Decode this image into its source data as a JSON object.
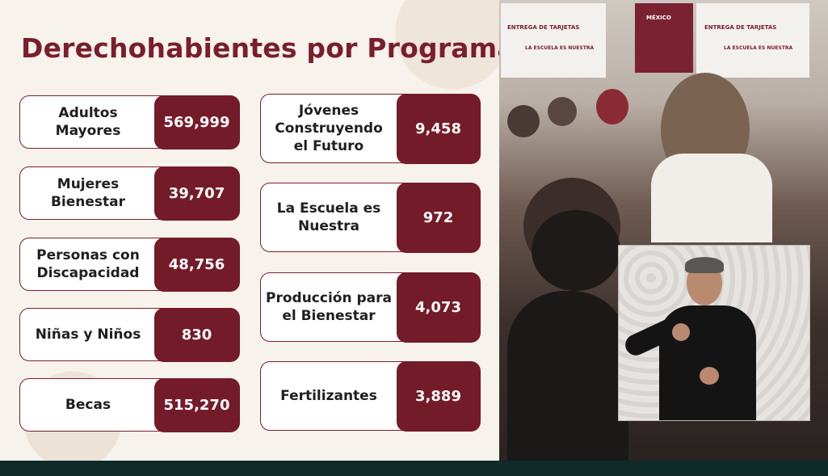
{
  "slide": {
    "title": "Derechohabientes por Programa",
    "programs_left": [
      {
        "label": "Adultos Mayores",
        "value": "569,999"
      },
      {
        "label": "Mujeres Bienestar",
        "value": "39,707"
      },
      {
        "label": "Personas con Discapacidad",
        "value": "48,756"
      },
      {
        "label": "Niñas y Niños",
        "value": "830"
      },
      {
        "label": "Becas",
        "value": "515,270"
      }
    ],
    "programs_right": [
      {
        "label": "Jóvenes Construyendo el Futuro",
        "value": "9,458"
      },
      {
        "label": "La Escuela es Nuestra",
        "value": "972"
      },
      {
        "label": "Producción para el Bienestar",
        "value": "4,073"
      },
      {
        "label": "Fertilizantes",
        "value": "3,889"
      }
    ]
  },
  "photo": {
    "banner_left": "ENTREGA DE TARJETAS",
    "banner_mid": "MÉXICO",
    "banner_right": "ENTREGA DE TARJETAS",
    "banner_logo_left": "LA ESCUELA ES NUESTRA",
    "banner_logo_right": "LA ESCUELA ES NUESTRA"
  },
  "colors": {
    "accent": "#741b29",
    "title": "#7a1e2c",
    "background": "#f8f2ec",
    "bottom_bar": "#0e2a29"
  }
}
